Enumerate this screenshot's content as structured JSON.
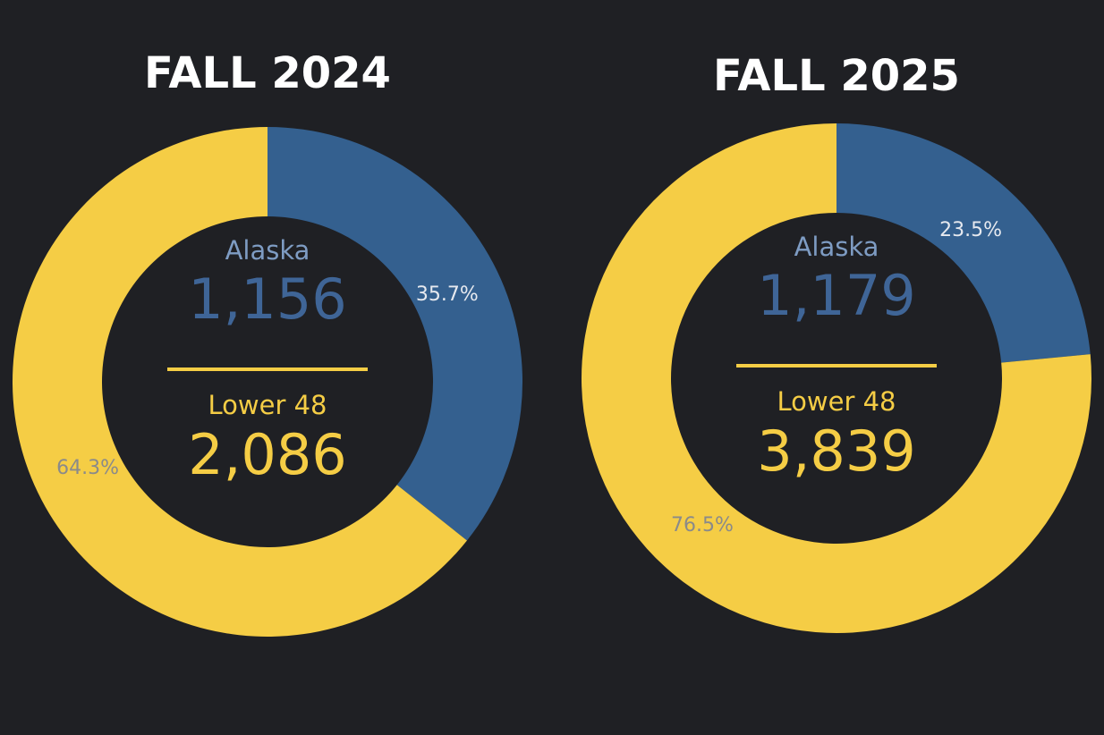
{
  "chart_data": [
    {
      "type": "pie",
      "title": "FALL 2024",
      "categories": [
        "Alaska",
        "Lower 48"
      ],
      "values": [
        35.7,
        64.3
      ],
      "value_labels": [
        "35.7%",
        "64.3%"
      ],
      "counts": [
        1156,
        2086
      ],
      "count_labels": [
        "1,156",
        "2,086"
      ],
      "colors": [
        "#34608f",
        "#f5cd45"
      ]
    },
    {
      "type": "pie",
      "title": "FALL 2025",
      "categories": [
        "Alaska",
        "Lower 48"
      ],
      "values": [
        23.5,
        76.5
      ],
      "value_labels": [
        "23.5%",
        "76.5%"
      ],
      "counts": [
        1179,
        3839
      ],
      "count_labels": [
        "1,179",
        "3,839"
      ],
      "colors": [
        "#34608f",
        "#f5cd45"
      ]
    }
  ]
}
